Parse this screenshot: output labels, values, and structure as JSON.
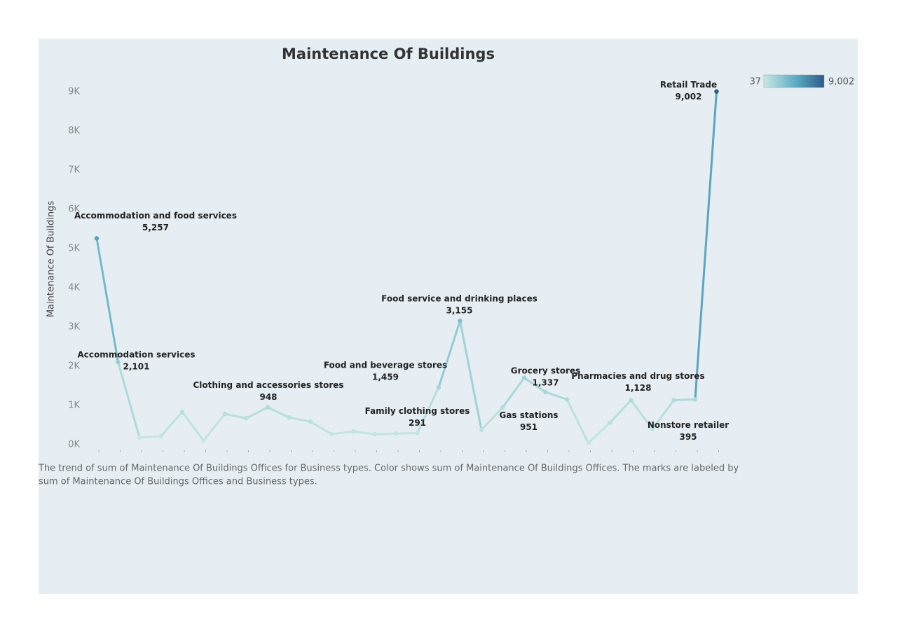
{
  "chart_data": {
    "type": "line",
    "title": "Maintenance Of Buildings",
    "y_label": "Maintenance Of Buildings",
    "caption": [
      "The trend of sum of Maintenance Of Buildings Offices for Business types.  Color shows sum of Maintenance Of Buildings Offices.  The marks are labeled by",
      "sum of Maintenance Of Buildings Offices and Business types."
    ],
    "categories": [
      "Accommodation and food services",
      "Accommodation services",
      null,
      null,
      null,
      null,
      null,
      null,
      "Clothing and accessories stores",
      null,
      null,
      null,
      null,
      null,
      null,
      "Family clothing stores",
      "Food and beverage stores",
      "Food service and drinking places",
      null,
      "Gas stations",
      null,
      "Grocery stores",
      null,
      null,
      null,
      "Pharmacies and drug stores",
      "Nonstore retailer",
      null,
      null,
      "Retail Trade"
    ],
    "values": [
      5257,
      2101,
      180,
      210,
      830,
      100,
      780,
      670,
      948,
      690,
      580,
      265,
      335,
      265,
      280,
      291,
      1459,
      3155,
      370,
      951,
      1700,
      1337,
      1150,
      37,
      550,
      1128,
      395,
      1130,
      1150,
      9002
    ],
    "value_labels": [
      "5,257",
      "2,101",
      null,
      null,
      null,
      null,
      null,
      null,
      "948",
      null,
      null,
      null,
      null,
      null,
      null,
      "291",
      "1,459",
      "3,155",
      null,
      "951",
      null,
      "1,337",
      null,
      null,
      null,
      "1,128",
      "395",
      null,
      null,
      "9,002"
    ],
    "ylim": [
      -450,
      9550
    ],
    "yticks": [
      {
        "value": 0,
        "label": "0K"
      },
      {
        "value": 1000,
        "label": "1K"
      },
      {
        "value": 2000,
        "label": "2K"
      },
      {
        "value": 3000,
        "label": "3K"
      },
      {
        "value": 4000,
        "label": "4K"
      },
      {
        "value": 5000,
        "label": "5K"
      },
      {
        "value": 6000,
        "label": "6K"
      },
      {
        "value": 7000,
        "label": "7K"
      },
      {
        "value": 8000,
        "label": "8K"
      },
      {
        "value": 9000,
        "label": "9K"
      }
    ],
    "colors": [
      "#c7e9e0",
      "#5fb0c6",
      "#2b5c8a"
    ],
    "color_range": [
      37,
      {
        "value": 9002,
        "label": "9,002"
      }
    ]
  }
}
